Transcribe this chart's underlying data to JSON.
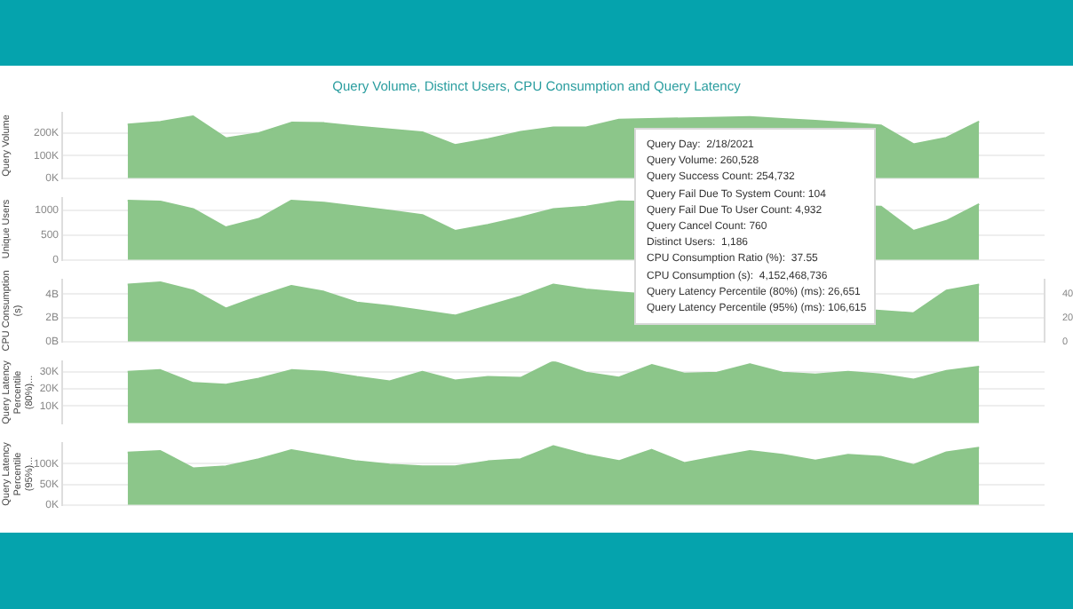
{
  "chart_data": [
    {
      "type": "area",
      "title": "Query Volume, Distinct Users, CPU Consumption and Query Latency",
      "ylabel": "Query Volume",
      "categories": [
        null,
        null,
        null,
        null,
        null,
        null,
        null,
        null,
        null,
        null,
        null,
        null,
        null,
        null,
        null,
        null,
        null,
        null,
        null,
        null,
        null,
        null,
        null,
        null,
        null,
        null,
        null,
        null,
        null,
        null,
        null
      ],
      "series": [
        {
          "color": "#8cc68a",
          "values": [
            null,
            null,
            239000,
            250000,
            275000,
            178000,
            200000,
            247000,
            245000,
            230000,
            217000,
            204000,
            148000,
            174000,
            206000,
            226000,
            226000,
            260528,
            null,
            null,
            null,
            272000,
            263000,
            255000,
            245000,
            235000,
            151000,
            180000,
            252000,
            null,
            null
          ]
        }
      ],
      "ylim": [
        0,
        290000
      ],
      "yticks": [
        {
          "value": 0,
          "label": "0K"
        },
        {
          "value": 100000,
          "label": "100K"
        },
        {
          "value": 200000,
          "label": "200K"
        }
      ],
      "grid": "y",
      "tick_labels": "y",
      "annotations": [
        "Query Day:  2/18/2021",
        "Query Volume: 260,528",
        "Query Success Count: 254,732",
        "Query Fail Due To System Count: 104",
        "Query Fail Due To User Count: 4,932",
        "Query Cancel Count: 760",
        "Distinct Users:  1,186",
        "CPU Consumption Ratio (%):  37.55",
        "CPU Consumption (s):  4,152,468,736",
        "Query Latency Percentile (80%) (ms): 26,651",
        "Query Latency Percentile (95%) (ms): 106,615"
      ]
    },
    {
      "type": "area",
      "ylabel": "Unique Users",
      "categories": [
        null,
        null,
        null,
        null,
        null,
        null,
        null,
        null,
        null,
        null,
        null,
        null,
        null,
        null,
        null,
        null,
        null,
        null,
        null,
        null,
        null,
        null,
        null,
        null,
        null,
        null,
        null,
        null,
        null,
        null,
        null
      ],
      "series": [
        {
          "color": "#8cc68a",
          "values": [
            null,
            null,
            1200,
            1180,
            1030,
            660,
            830,
            1200,
            1160,
            1080,
            1000,
            910,
            590,
            710,
            860,
            1030,
            1080,
            1186,
            null,
            null,
            null,
            null,
            null,
            null,
            null,
            1080,
            590,
            790,
            1130,
            null,
            null
          ]
        }
      ],
      "ylim": [
        0,
        1250
      ],
      "yticks": [
        0,
        500,
        1000
      ],
      "grid": "y",
      "tick_labels": "y"
    },
    {
      "type": "area",
      "ylabel": "CPU Consumption (s)",
      "categories": [
        null,
        null,
        null,
        null,
        null,
        null,
        null,
        null,
        null,
        null,
        null,
        null,
        null,
        null,
        null,
        null,
        null,
        null,
        null,
        null,
        null,
        null,
        null,
        null,
        null,
        null,
        null,
        null,
        null,
        null,
        null
      ],
      "series": [
        {
          "color": "#8cc68a",
          "values": [
            null,
            null,
            4800000000,
            5000000000,
            4300000000,
            2800000000,
            3800000000,
            4700000000,
            4200000000,
            3300000000,
            3000000000,
            2600000000,
            2200000000,
            3000000000,
            3800000000,
            4800000000,
            4400000000,
            4152468736,
            null,
            null,
            null,
            null,
            null,
            null,
            null,
            null,
            2400000000,
            4300000000,
            4800000000,
            null,
            null
          ]
        }
      ],
      "ylim": [
        0,
        5200000000
      ],
      "yticks": [
        {
          "value": 0,
          "label": "0B"
        },
        {
          "value": 2000000000,
          "label": "2B"
        },
        {
          "value": 4000000000,
          "label": "4B"
        }
      ],
      "y2lim": [
        0,
        52
      ],
      "y2ticks": [
        0,
        20,
        40
      ],
      "grid": "y",
      "tick_labels": "y"
    },
    {
      "type": "area",
      "ylabel": "Query Latency Percentile (80%)...",
      "categories": [
        null,
        null,
        null,
        null,
        null,
        null,
        null,
        null,
        null,
        null,
        null,
        null,
        null,
        null,
        null,
        null,
        null,
        null,
        null,
        null,
        null,
        null,
        null,
        null,
        null,
        null,
        null,
        null,
        null,
        null,
        null
      ],
      "series": [
        {
          "color": "#8cc68a",
          "values": [
            null,
            null,
            30000,
            31000,
            23500,
            22500,
            26000,
            31000,
            30000,
            27000,
            24500,
            30000,
            25000,
            27000,
            26500,
            36000,
            29500,
            26651,
            34000,
            29000,
            29500,
            34500,
            29500,
            28500,
            30000,
            28500,
            25500,
            30500,
            33000,
            null,
            null
          ]
        }
      ],
      "ylim": [
        0,
        36000
      ],
      "yticks": [
        {
          "value": 10000,
          "label": "10K"
        },
        {
          "value": 20000,
          "label": "20K"
        },
        {
          "value": 30000,
          "label": "30K"
        }
      ],
      "grid": "y",
      "tick_labels": "y"
    },
    {
      "type": "area",
      "ylabel": "Query Latency Percentile (95%)...",
      "categories": [
        null,
        null,
        null,
        null,
        null,
        null,
        null,
        null,
        null,
        null,
        null,
        null,
        null,
        null,
        null,
        null,
        null,
        null,
        null,
        null,
        null,
        null,
        null,
        null,
        null,
        null,
        null,
        null,
        null,
        null,
        null
      ],
      "series": [
        {
          "color": "#8cc68a",
          "values": [
            null,
            null,
            127000,
            131000,
            89000,
            94000,
            111000,
            133000,
            120000,
            106000,
            98000,
            94000,
            94000,
            106000,
            111000,
            143000,
            122000,
            106615,
            134000,
            102000,
            117000,
            131000,
            122000,
            108000,
            122000,
            117000,
            97000,
            128000,
            139000,
            null,
            null
          ]
        }
      ],
      "ylim": [
        0,
        150000
      ],
      "yticks": [
        {
          "value": 0,
          "label": "0K"
        },
        {
          "value": 50000,
          "label": "50K"
        },
        {
          "value": 100000,
          "label": "100K"
        }
      ],
      "grid": "y",
      "tick_labels": "y"
    }
  ]
}
